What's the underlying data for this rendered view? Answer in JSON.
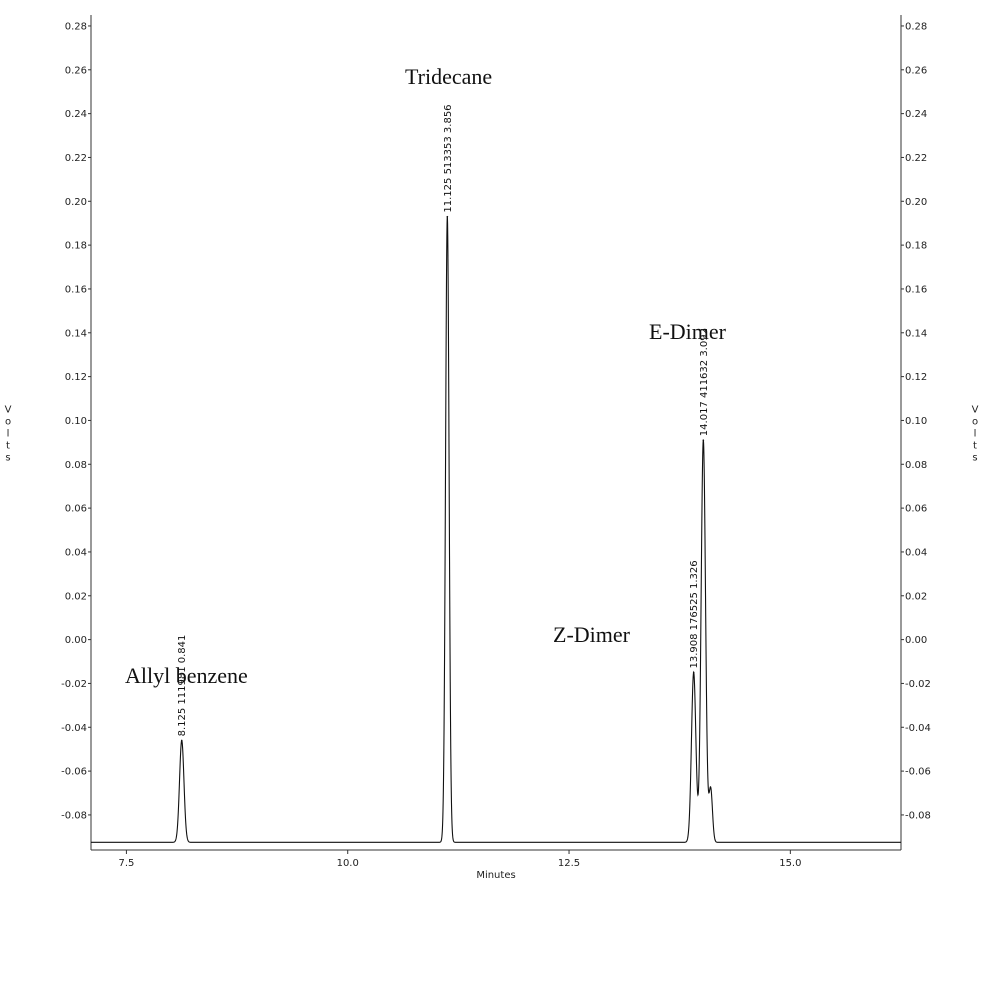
{
  "chart_data": {
    "type": "line",
    "title": "",
    "xlabel": "Minutes",
    "ylabel_letters": [
      "V",
      "o",
      "l",
      "t",
      "s"
    ],
    "xlim": [
      7.1,
      16.25
    ],
    "ylim": [
      -0.096,
      0.285
    ],
    "x_ticks": [
      7.5,
      10.0,
      12.5,
      15.0
    ],
    "x_tick_labels": [
      "7.5",
      "10.0",
      "12.5",
      "15.0"
    ],
    "y_ticks": [
      0.28,
      0.26,
      0.24,
      0.22,
      0.2,
      0.18,
      0.16,
      0.14,
      0.12,
      0.1,
      0.08,
      0.06,
      0.04,
      0.02,
      0.0,
      -0.02,
      -0.04,
      -0.06,
      -0.08
    ],
    "y_tick_labels": [
      "0.28",
      "0.26",
      "0.24",
      "0.22",
      "0.20",
      "0.18",
      "0.16",
      "0.14",
      "0.12",
      "0.10",
      "0.08",
      "0.06",
      "0.04",
      "0.02",
      "0.00",
      "-0.02",
      "-0.04",
      "-0.06",
      "-0.08"
    ],
    "baseline": -0.0925,
    "peaks": [
      {
        "name": "Allyl benzene",
        "rt": 8.125,
        "apex": -0.046,
        "width": 0.025,
        "label": "8.125 111981 0.841"
      },
      {
        "name": "Tridecane",
        "rt": 11.125,
        "apex": 0.193,
        "width": 0.02,
        "label": "11.125 513353 3.856"
      },
      {
        "name": "Z-Dimer",
        "rt": 13.908,
        "apex": -0.015,
        "width": 0.025,
        "label": "13.908 176525 1.326"
      },
      {
        "name": "E-Dimer",
        "rt": 14.017,
        "apex": 0.091,
        "width": 0.025,
        "label": "14.017 411632 3.092"
      },
      {
        "name": "",
        "rt": 14.1,
        "apex": -0.068,
        "width": 0.02,
        "label": ""
      }
    ],
    "annotations": [
      "Allyl benzene",
      "Tridecane",
      "Z-Dimer",
      "E-Dimer"
    ],
    "grid": false,
    "colors": {
      "trace": "#111111",
      "axis": "#333333",
      "text": "#222222"
    }
  }
}
